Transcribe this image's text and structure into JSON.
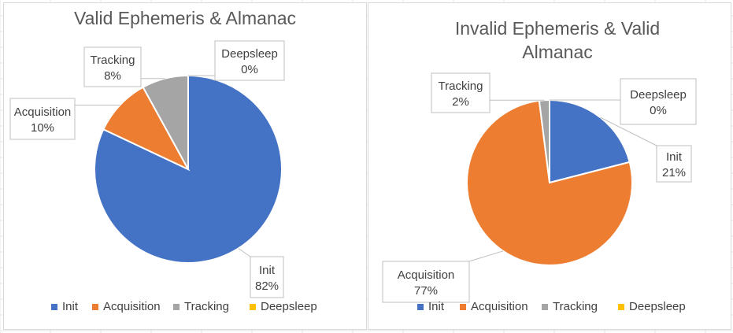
{
  "colors": {
    "Init": "#4472C4",
    "Acquisition": "#ED7D31",
    "Tracking": "#A5A5A5",
    "Deepsleep": "#FFC000"
  },
  "chart_data": [
    {
      "type": "pie",
      "title": "Valid Ephemeris & Almanac",
      "categories": [
        "Init",
        "Acquisition",
        "Tracking",
        "Deepsleep"
      ],
      "values": [
        82,
        10,
        8,
        0
      ],
      "data_labels": [
        "82%",
        "10%",
        "8%",
        "0%"
      ],
      "legend": [
        "Init",
        "Acquisition",
        "Tracking",
        "Deepsleep"
      ],
      "legend_position": "bottom"
    },
    {
      "type": "pie",
      "title": "Invalid Ephemeris & Valid Almanac",
      "title_lines": [
        "Invalid Ephemeris & Valid",
        "Almanac"
      ],
      "categories": [
        "Init",
        "Acquisition",
        "Tracking",
        "Deepsleep"
      ],
      "values": [
        21,
        77,
        2,
        0
      ],
      "data_labels": [
        "21%",
        "77%",
        "2%",
        "0%"
      ],
      "legend": [
        "Init",
        "Acquisition",
        "Tracking",
        "Deepsleep"
      ],
      "legend_position": "bottom"
    }
  ]
}
